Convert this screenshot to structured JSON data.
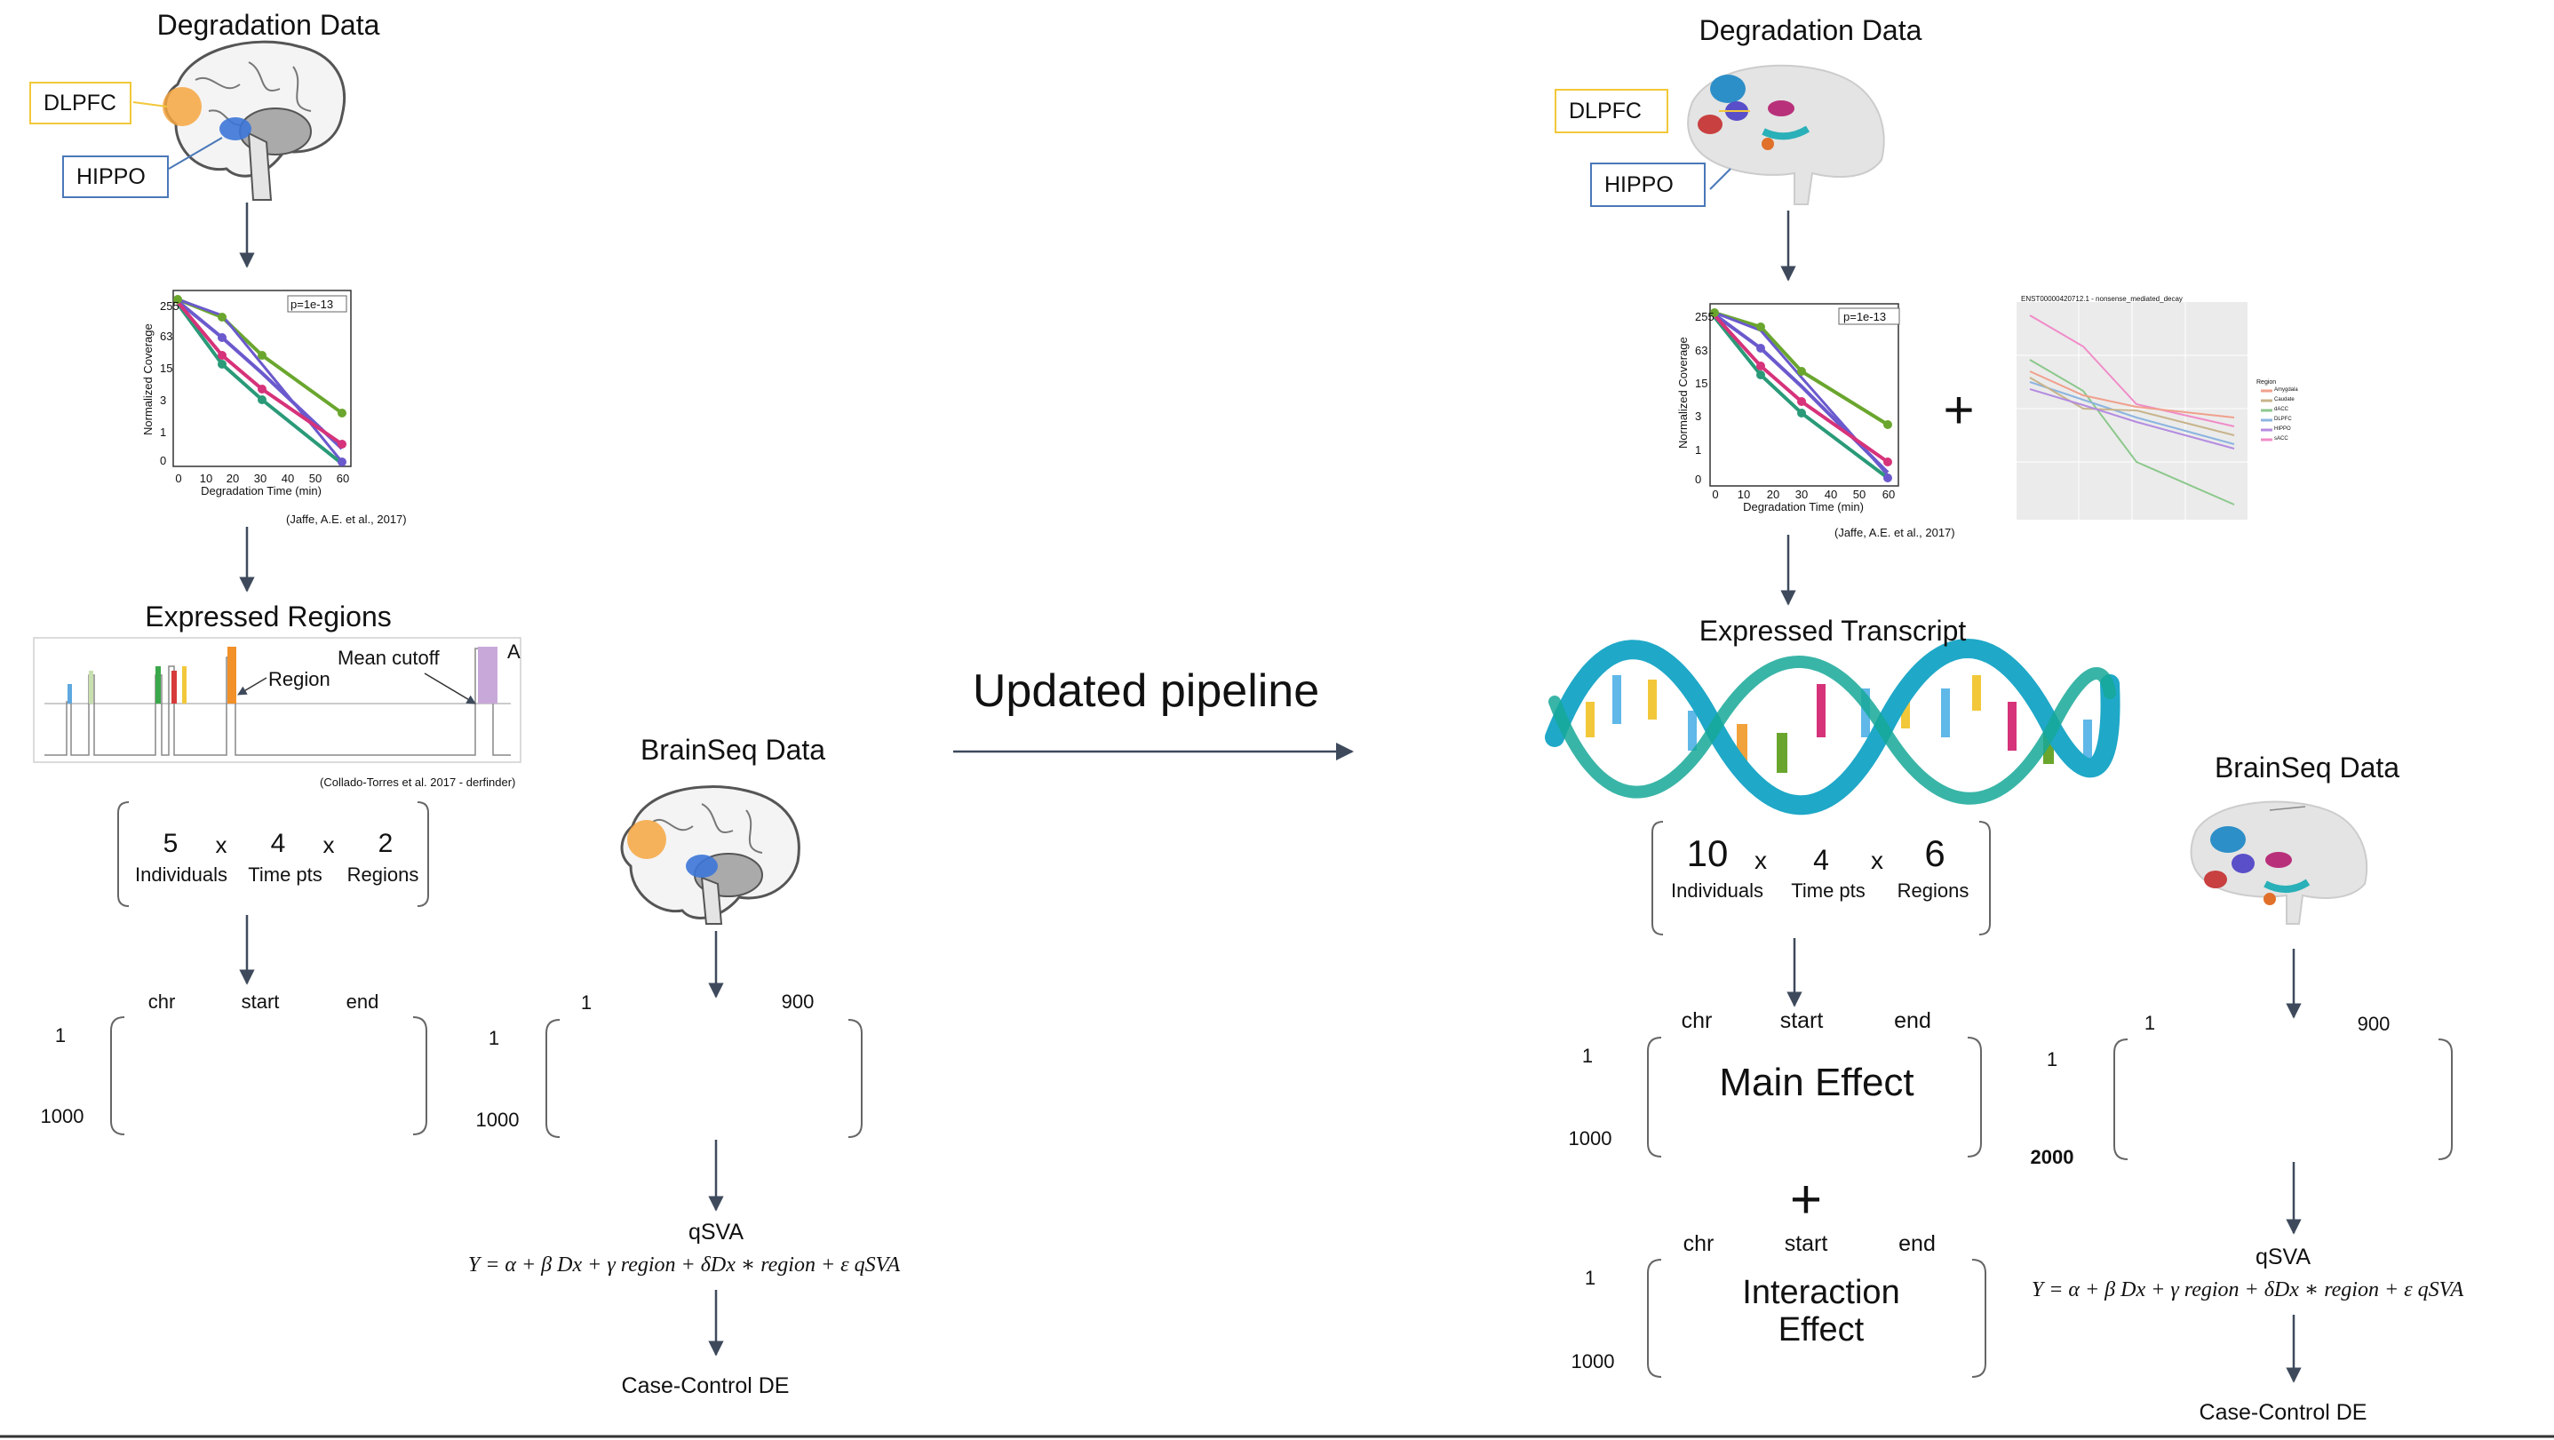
{
  "middle": {
    "arrow_label": "Updated pipeline"
  },
  "left": {
    "degradation_title": "Degradation Data",
    "dlpfc": "DLPFC",
    "hippo": "HIPPO",
    "plot": {
      "pval": "p=1e-13",
      "ylabel": "Normalized Coverage",
      "xlabel": "Degradation Time (min)",
      "yticks": [
        "255",
        "63",
        "15",
        "3",
        "1",
        "0"
      ],
      "xticks": [
        "0",
        "10",
        "20",
        "30",
        "40",
        "50",
        "60"
      ],
      "citation": "(Jaffe, A.E. et al., 2017)"
    },
    "regions_title": "Expressed Regions",
    "region_label": "Region",
    "mean_cutoff": "Mean cutoff",
    "panel_letter": "A",
    "derfinder_cite": "(Collado-Torres et al. 2017 - derfinder)",
    "dims": {
      "n1": "5",
      "c1": "Individuals",
      "n2": "4",
      "c2": "Time pts",
      "n3": "2",
      "c3": "Regions",
      "x": "x"
    },
    "mat": {
      "chr": "chr",
      "start": "start",
      "end": "end",
      "r1": "1",
      "r2": "1000"
    },
    "brainseq": {
      "title": "BrainSeq Data",
      "c1": "1",
      "c2": "900",
      "r1": "1",
      "r2": "1000",
      "qsva": "qSVA",
      "formula": "Y = α + β Dx + γ region + δDx ∗ region + ε qSVA",
      "de": "Case-Control DE"
    }
  },
  "right": {
    "degradation_title": "Degradation Data",
    "dlpfc": "DLPFC",
    "hippo": "HIPPO",
    "plot": {
      "pval": "p=1e-13",
      "ylabel": "Normalized Coverage",
      "xlabel": "Degradation Time (min)",
      "yticks": [
        "255",
        "63",
        "15",
        "3",
        "1",
        "0"
      ],
      "xticks": [
        "0",
        "10",
        "20",
        "30",
        "40",
        "50",
        "60"
      ],
      "citation": "(Jaffe, A.E. et al., 2017)"
    },
    "plus": "+",
    "mini_title": "ENST00000420712.1 - nonsense_mediated_decay",
    "mini_legend_title": "Region",
    "mini_legend": [
      "Amygdala",
      "Caudate",
      "dACC",
      "DLPFC",
      "HIPPO",
      "sACC"
    ],
    "transcript_title": "Expressed Transcript",
    "dims": {
      "n1": "10",
      "c1": "Individuals",
      "n2": "4",
      "c2": "Time pts",
      "n3": "6",
      "c3": "Regions",
      "x": "x"
    },
    "mat1": {
      "chr": "chr",
      "start": "start",
      "end": "end",
      "r1": "1",
      "r2": "1000",
      "content": "Main Effect"
    },
    "plus2": "+",
    "mat2": {
      "chr": "chr",
      "start": "start",
      "end": "end",
      "r1": "1",
      "r2": "1000",
      "content": "Interaction Effect"
    },
    "brainseq": {
      "title": "BrainSeq Data",
      "c1": "1",
      "c2": "900",
      "r1": "1",
      "r2": "2000",
      "qsva": "qSVA",
      "formula": "Y = α + β Dx + γ region + δDx ∗ region + ε qSVA",
      "de": "Case-Control DE"
    }
  },
  "colors": {
    "arrow": "#3e4a5c",
    "dlpfc_border": "#f2c83a",
    "hippo_border": "#4a78b8",
    "green": "#6aa62e",
    "teal": "#2a9a78",
    "magenta": "#d6337a",
    "purple": "#6a5acd",
    "orange": "#f2a23a",
    "helix": "#1fa8c8"
  }
}
